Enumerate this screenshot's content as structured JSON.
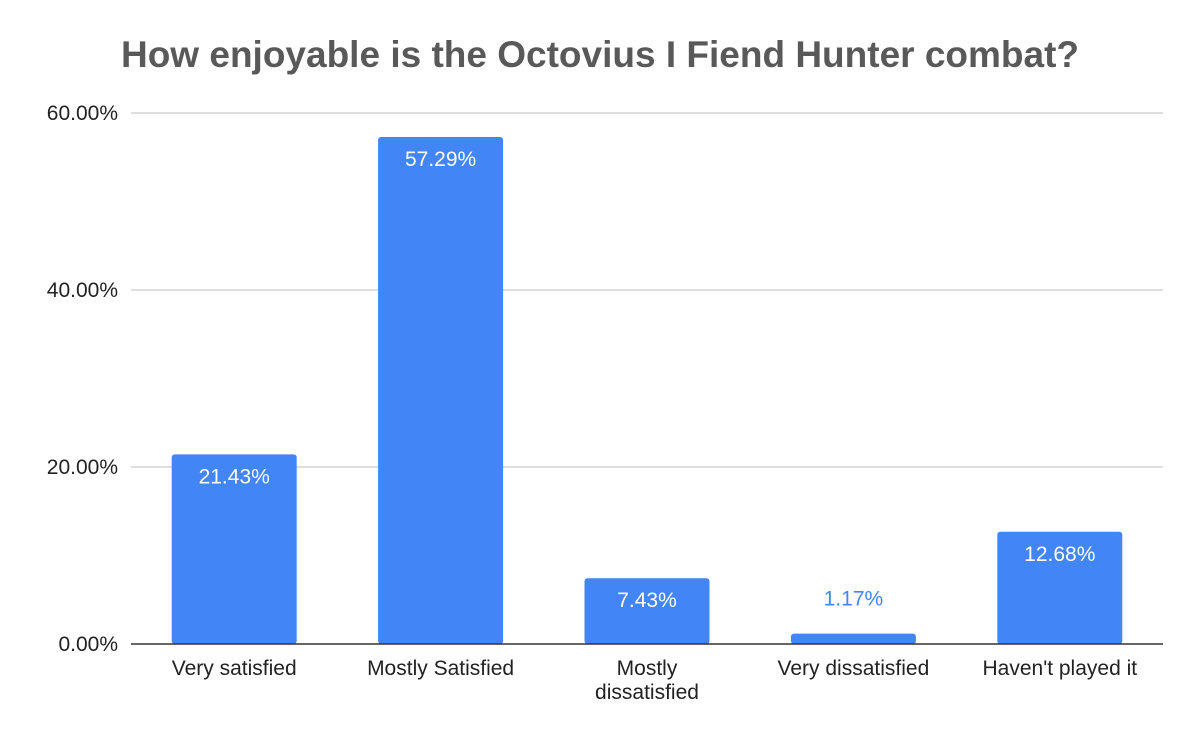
{
  "chart_data": {
    "type": "bar",
    "title": "How enjoyable is the Octovius I Fiend Hunter combat?",
    "categories": [
      [
        "Very satisfied"
      ],
      [
        "Mostly Satisfied"
      ],
      [
        "Mostly",
        "dissatisfied"
      ],
      [
        "Very dissatisfied"
      ],
      [
        "Haven't played it"
      ]
    ],
    "values": [
      21.43,
      57.29,
      7.43,
      1.17,
      12.68
    ],
    "data_labels": [
      "21.43%",
      "57.29%",
      "7.43%",
      "1.17%",
      "12.68%"
    ],
    "y_ticks": [
      0,
      20,
      40,
      60
    ],
    "y_tick_labels": [
      "0.00%",
      "20.00%",
      "40.00%",
      "60.00%"
    ],
    "ylim": [
      0,
      60
    ],
    "xlabel": "",
    "ylabel": "",
    "grid": true,
    "legend": "none",
    "colors": {
      "bar": "#4285f4",
      "label_inside": "#ffffff",
      "label_outside": "#4285f4",
      "gridline": "#cccccc",
      "baseline": "#333333",
      "title": "#595959"
    }
  }
}
